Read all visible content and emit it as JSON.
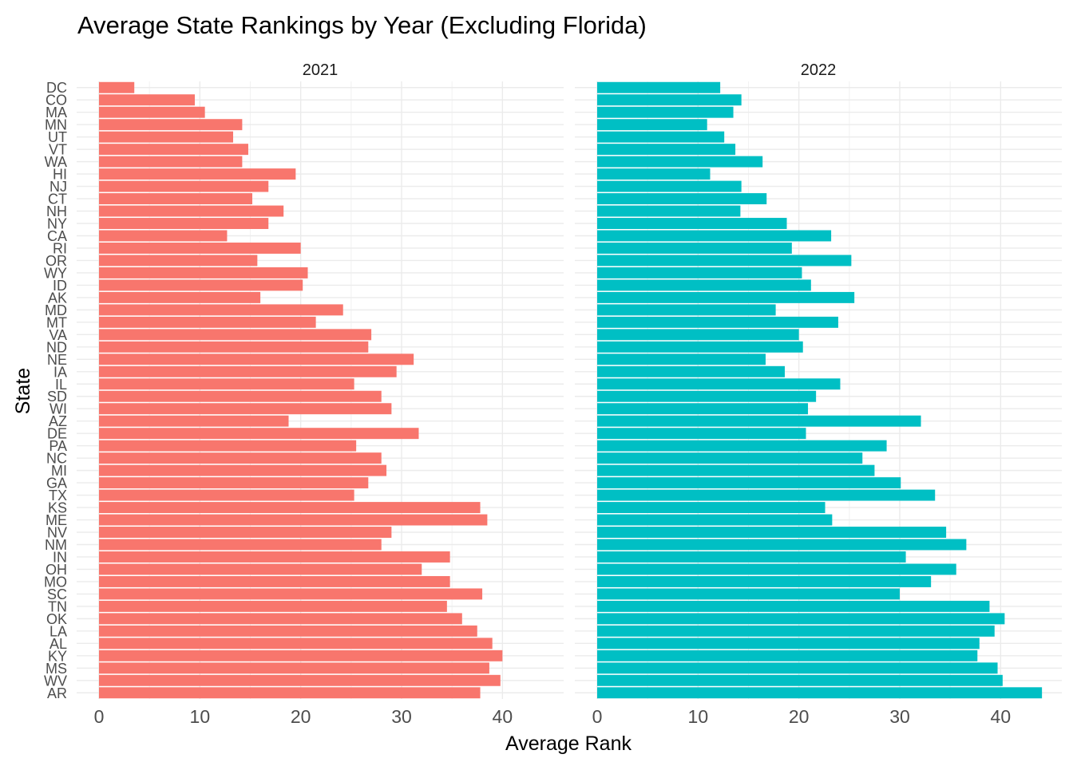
{
  "chart_data": {
    "type": "bar",
    "orientation": "horizontal",
    "title": "Average State Rankings by Year (Excluding Florida)",
    "xlabel": "Average Rank",
    "ylabel": "State",
    "xlim": [
      0,
      45
    ],
    "x_ticks": [
      0,
      10,
      20,
      30,
      40
    ],
    "grid": true,
    "legend": "none",
    "categories": [
      "DC",
      "CO",
      "MA",
      "MN",
      "UT",
      "VT",
      "WA",
      "HI",
      "NJ",
      "CT",
      "NH",
      "NY",
      "CA",
      "RI",
      "OR",
      "WY",
      "ID",
      "AK",
      "MD",
      "MT",
      "VA",
      "ND",
      "NE",
      "IA",
      "IL",
      "SD",
      "WI",
      "AZ",
      "DE",
      "PA",
      "NC",
      "MI",
      "GA",
      "TX",
      "KS",
      "ME",
      "NV",
      "NM",
      "IN",
      "OH",
      "MO",
      "SC",
      "TN",
      "OK",
      "LA",
      "AL",
      "KY",
      "MS",
      "WV",
      "AR"
    ],
    "panels": [
      {
        "label": "2021",
        "color": "#F8766D",
        "values": [
          3.5,
          9.5,
          10.5,
          14.2,
          13.3,
          14.8,
          14.2,
          19.5,
          16.8,
          15.2,
          18.3,
          16.8,
          12.7,
          20.0,
          15.7,
          20.7,
          20.2,
          16.0,
          24.2,
          21.5,
          27.0,
          26.7,
          31.2,
          29.5,
          25.3,
          28.0,
          29.0,
          18.8,
          31.7,
          25.5,
          28.0,
          28.5,
          26.7,
          25.3,
          37.8,
          38.5,
          29.0,
          28.0,
          34.8,
          32.0,
          34.8,
          38.0,
          34.5,
          36.0,
          37.5,
          39.0,
          40.0,
          38.7,
          39.8,
          37.8
        ]
      },
      {
        "label": "2022",
        "color": "#00BFC4",
        "values": [
          12.2,
          14.3,
          13.5,
          10.9,
          12.6,
          13.7,
          16.4,
          11.2,
          14.3,
          16.8,
          14.2,
          18.8,
          23.2,
          19.3,
          25.2,
          20.3,
          21.2,
          25.5,
          17.7,
          23.9,
          20.0,
          20.4,
          16.7,
          18.6,
          24.1,
          21.7,
          20.9,
          32.1,
          20.7,
          28.7,
          26.3,
          27.5,
          30.1,
          33.5,
          22.6,
          23.3,
          34.6,
          36.6,
          30.6,
          35.6,
          33.1,
          30.0,
          38.9,
          40.4,
          39.4,
          37.9,
          37.7,
          39.7,
          40.2,
          44.1
        ]
      }
    ]
  }
}
